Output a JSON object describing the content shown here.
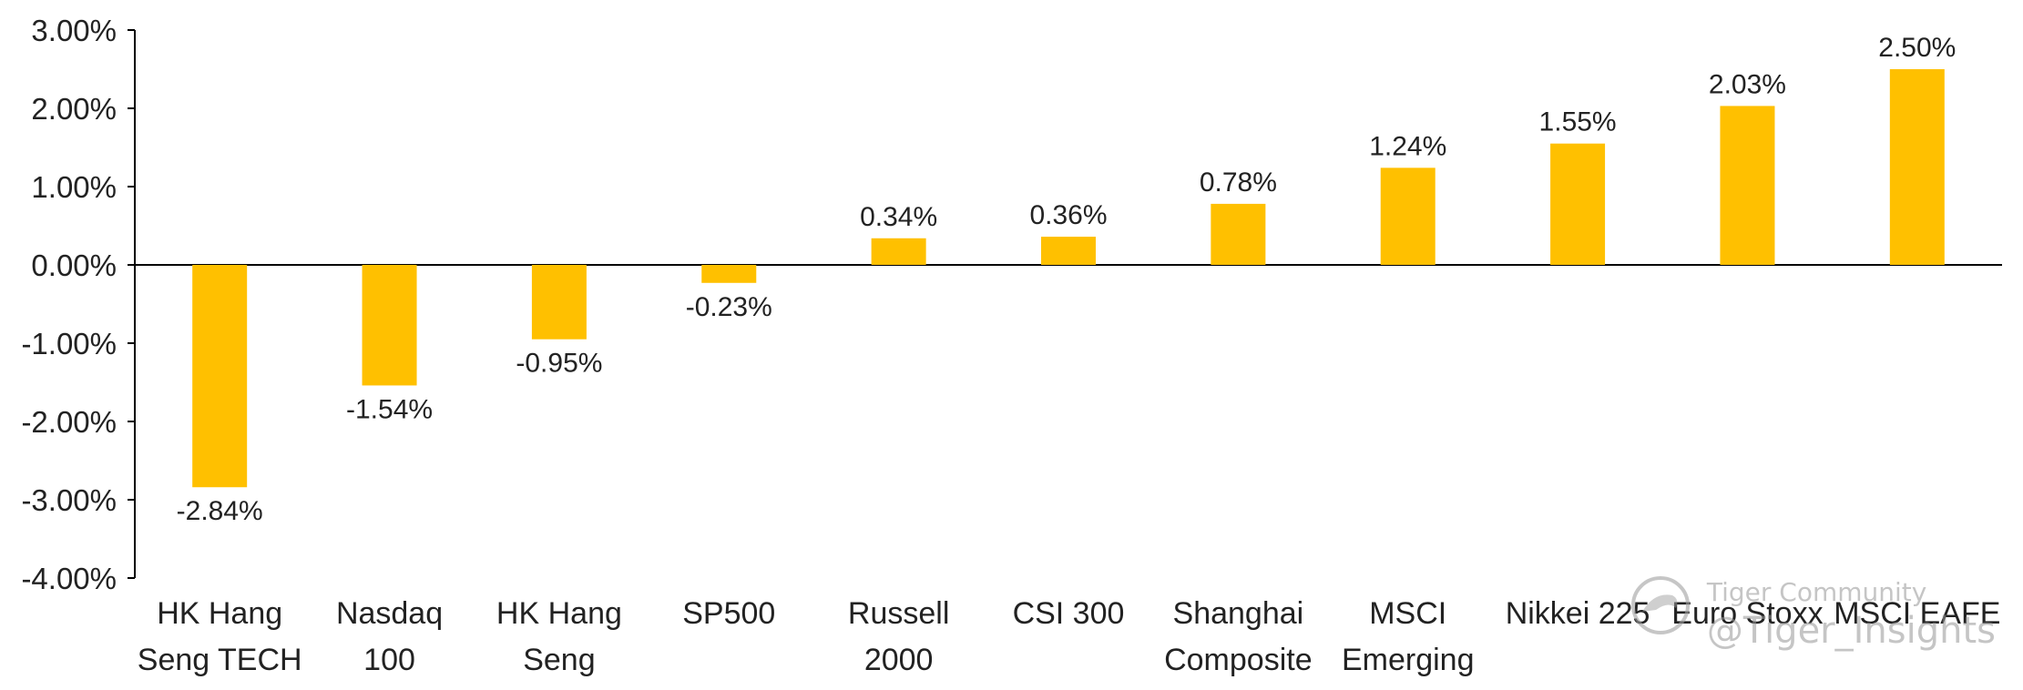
{
  "chart_data": {
    "type": "bar",
    "categories": [
      [
        "HK Hang",
        "Seng TECH"
      ],
      [
        "Nasdaq",
        "100"
      ],
      [
        "HK Hang",
        "Seng"
      ],
      [
        "SP500"
      ],
      [
        "Russell",
        "2000"
      ],
      [
        "CSI 300"
      ],
      [
        "Shanghai",
        "Composite"
      ],
      [
        "MSCI",
        "Emerging"
      ],
      [
        "Nikkei 225"
      ],
      [
        "Euro Stoxx"
      ],
      [
        "MSCI EAFE"
      ]
    ],
    "values": [
      -2.84,
      -1.54,
      -0.95,
      -0.23,
      0.34,
      0.36,
      0.78,
      1.24,
      1.55,
      2.03,
      2.5
    ],
    "data_labels": [
      "-2.84%",
      "-1.54%",
      "-0.95%",
      "-0.23%",
      "0.34%",
      "0.36%",
      "0.78%",
      "1.24%",
      "1.55%",
      "2.03%",
      "2.50%"
    ],
    "y_ticks": [
      "3.00%",
      "2.00%",
      "1.00%",
      "0.00%",
      "-1.00%",
      "-2.00%",
      "-3.00%",
      "-4.00%"
    ],
    "ylim": [
      -4,
      3
    ],
    "bar_color": "#FFC000",
    "grid": false,
    "title": "",
    "xlabel": "",
    "ylabel": ""
  },
  "watermark": {
    "line1": "Tiger Community",
    "line2": "@Tiger_Insights"
  }
}
